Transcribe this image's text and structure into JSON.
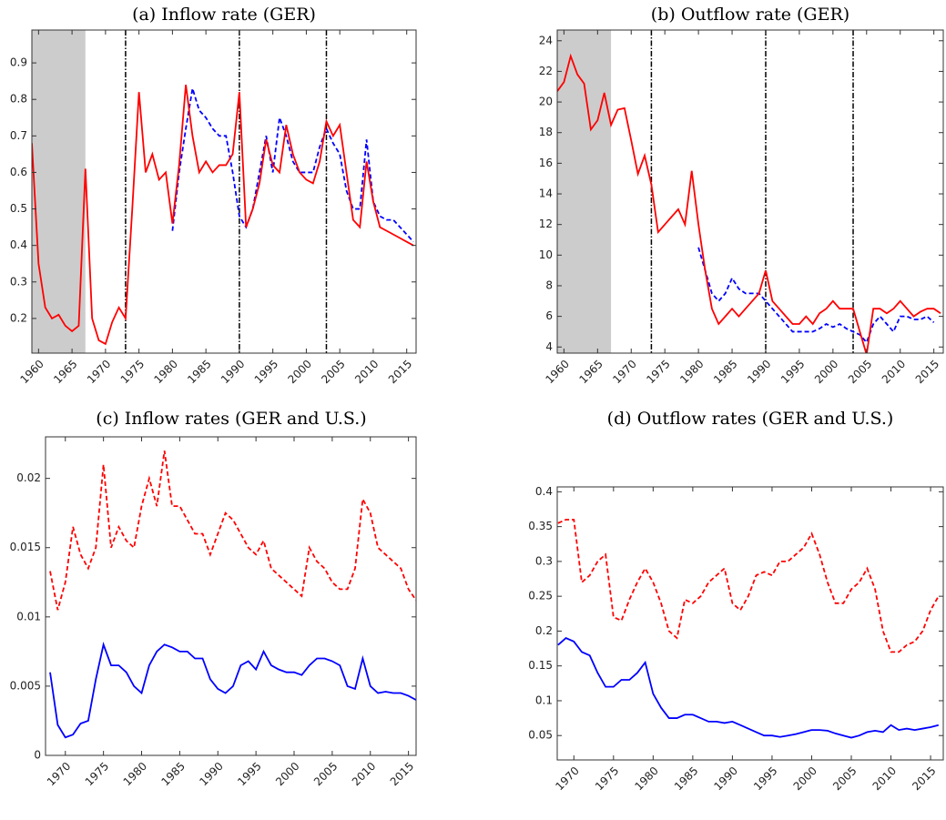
{
  "chart_data": [
    {
      "type": "line",
      "title": "(a)  Inflow rate (GER)",
      "x": [
        1959,
        1960,
        1961,
        1962,
        1963,
        1964,
        1965,
        1966,
        1967,
        1968,
        1969,
        1970,
        1971,
        1972,
        1973,
        1974,
        1975,
        1976,
        1977,
        1978,
        1979,
        1980,
        1981,
        1982,
        1983,
        1984,
        1985,
        1986,
        1987,
        1988,
        1989,
        1990,
        1991,
        1992,
        1993,
        1994,
        1995,
        1996,
        1997,
        1998,
        1999,
        2000,
        2001,
        2002,
        2003,
        2004,
        2005,
        2006,
        2007,
        2008,
        2009,
        2010,
        2011,
        2012,
        2013,
        2014,
        2015,
        2016
      ],
      "series": [
        {
          "color": "#0000ff",
          "style": "dashed",
          "values": [
            null,
            null,
            null,
            null,
            null,
            null,
            null,
            null,
            null,
            null,
            null,
            null,
            null,
            null,
            null,
            null,
            null,
            null,
            null,
            null,
            null,
            0.44,
            0.6,
            0.72,
            0.83,
            0.77,
            0.75,
            0.72,
            0.7,
            0.7,
            0.6,
            0.48,
            0.45,
            0.5,
            0.6,
            0.7,
            0.6,
            0.75,
            0.7,
            0.63,
            0.6,
            0.6,
            0.6,
            0.67,
            0.72,
            0.68,
            0.65,
            0.55,
            0.5,
            0.5,
            0.69,
            0.52,
            0.48,
            0.47,
            0.47,
            0.45,
            0.43,
            0.41
          ]
        },
        {
          "color": "#ff0000",
          "style": "solid",
          "values": [
            0.68,
            0.35,
            0.23,
            0.2,
            0.21,
            0.18,
            0.165,
            0.18,
            0.61,
            0.2,
            0.14,
            0.13,
            0.19,
            0.23,
            0.2,
            0.5,
            0.82,
            0.6,
            0.65,
            0.58,
            0.6,
            0.46,
            0.62,
            0.84,
            0.7,
            0.6,
            0.63,
            0.6,
            0.62,
            0.62,
            0.65,
            0.82,
            0.45,
            0.5,
            0.57,
            0.69,
            0.62,
            0.6,
            0.73,
            0.65,
            0.6,
            0.58,
            0.57,
            0.63,
            0.74,
            0.7,
            0.73,
            0.6,
            0.47,
            0.45,
            0.63,
            0.52,
            0.45,
            0.44,
            0.43,
            0.42,
            0.41,
            0.4
          ]
        }
      ],
      "xlim": [
        1959,
        2016.4
      ],
      "xticks": [
        1960,
        1965,
        1970,
        1975,
        1980,
        1985,
        1990,
        1995,
        2000,
        2005,
        2010,
        2015
      ],
      "ylim": [
        0.105,
        0.99
      ],
      "yticks": [
        0.2,
        0.3,
        0.4,
        0.5,
        0.6,
        0.7,
        0.8,
        0.9
      ],
      "shade": [
        1959,
        1967
      ],
      "shade_color": "#cccccc",
      "vlines": [
        1973,
        1990,
        2003
      ]
    },
    {
      "type": "line",
      "title": "(b)  Outflow rate (GER)",
      "x": [
        1959,
        1960,
        1961,
        1962,
        1963,
        1964,
        1965,
        1966,
        1967,
        1968,
        1969,
        1970,
        1971,
        1972,
        1973,
        1974,
        1975,
        1976,
        1977,
        1978,
        1979,
        1980,
        1981,
        1982,
        1983,
        1984,
        1985,
        1986,
        1987,
        1988,
        1989,
        1990,
        1991,
        1992,
        1993,
        1994,
        1995,
        1996,
        1997,
        1998,
        1999,
        2000,
        2001,
        2002,
        2003,
        2004,
        2005,
        2006,
        2007,
        2008,
        2009,
        2010,
        2011,
        2012,
        2013,
        2014,
        2015,
        2016
      ],
      "series": [
        {
          "color": "#0000ff",
          "style": "dashed",
          "values": [
            null,
            null,
            null,
            null,
            null,
            null,
            null,
            null,
            null,
            null,
            null,
            null,
            null,
            null,
            null,
            null,
            null,
            null,
            null,
            null,
            null,
            10.5,
            9,
            7.5,
            7,
            7.5,
            8.5,
            7.8,
            7.5,
            7.5,
            7.5,
            7,
            6.5,
            6,
            5.5,
            5,
            5,
            5,
            5,
            5.2,
            5.5,
            5.3,
            5.5,
            5.2,
            5,
            4.8,
            4.3,
            5.5,
            6,
            5.5,
            5,
            6,
            6,
            5.8,
            5.8,
            6,
            5.6,
            null
          ]
        },
        {
          "color": "#ff0000",
          "style": "solid",
          "values": [
            20.7,
            21.3,
            23,
            21.8,
            21.2,
            18.2,
            18.8,
            20.6,
            18.5,
            19.5,
            19.6,
            17.5,
            15.3,
            16.5,
            14.6,
            11.5,
            12,
            12.5,
            13,
            12,
            15.5,
            12,
            9,
            6.5,
            5.5,
            6,
            6.5,
            6,
            6.5,
            7,
            7.5,
            9,
            7,
            6.5,
            6,
            5.5,
            5.5,
            6,
            5.5,
            6.2,
            6.5,
            7,
            6.5,
            6.5,
            6.5,
            5,
            3.5,
            6.5,
            6.5,
            6.2,
            6.5,
            7,
            6.5,
            6,
            6.3,
            6.5,
            6.5,
            6.2
          ]
        }
      ],
      "xlim": [
        1959,
        2016.4
      ],
      "xticks": [
        1960,
        1965,
        1970,
        1975,
        1980,
        1985,
        1990,
        1995,
        2000,
        2005,
        2010,
        2015
      ],
      "ylim": [
        3.6,
        24.7
      ],
      "yticks": [
        4,
        6,
        8,
        10,
        12,
        14,
        16,
        18,
        20,
        22,
        24
      ],
      "shade": [
        1959,
        1967
      ],
      "shade_color": "#cccccc",
      "vlines": [
        1973,
        1990,
        2003
      ]
    },
    {
      "type": "line",
      "title": "(c)  Inflow rates (GER and U.S.)",
      "x": [
        1968,
        1969,
        1970,
        1971,
        1972,
        1973,
        1974,
        1975,
        1976,
        1977,
        1978,
        1979,
        1980,
        1981,
        1982,
        1983,
        1984,
        1985,
        1986,
        1987,
        1988,
        1989,
        1990,
        1991,
        1992,
        1993,
        1994,
        1995,
        1996,
        1997,
        1998,
        1999,
        2000,
        2001,
        2002,
        2003,
        2004,
        2005,
        2006,
        2007,
        2008,
        2009,
        2010,
        2011,
        2012,
        2013,
        2014,
        2015,
        2016
      ],
      "series": [
        {
          "color": "#ff0000",
          "style": "dashed",
          "values": [
            0.0133,
            0.0105,
            0.0125,
            0.0165,
            0.0145,
            0.0135,
            0.015,
            0.021,
            0.015,
            0.0165,
            0.0155,
            0.015,
            0.018,
            0.02,
            0.018,
            0.022,
            0.018,
            0.018,
            0.017,
            0.016,
            0.016,
            0.0145,
            0.016,
            0.0175,
            0.017,
            0.016,
            0.015,
            0.0145,
            0.0155,
            0.0135,
            0.013,
            0.0125,
            0.012,
            0.0115,
            0.015,
            0.014,
            0.0135,
            0.0125,
            0.012,
            0.012,
            0.0135,
            0.0185,
            0.0175,
            0.015,
            0.0145,
            0.014,
            0.0135,
            0.012,
            0.0112
          ]
        },
        {
          "color": "#0000ff",
          "style": "solid",
          "values": [
            0.006,
            0.0022,
            0.0013,
            0.0015,
            0.0023,
            0.0025,
            0.0055,
            0.008,
            0.0065,
            0.0065,
            0.006,
            0.005,
            0.0045,
            0.0065,
            0.0075,
            0.008,
            0.0078,
            0.0075,
            0.0075,
            0.007,
            0.007,
            0.0055,
            0.0048,
            0.0045,
            0.005,
            0.0065,
            0.0068,
            0.0062,
            0.0075,
            0.0065,
            0.0062,
            0.006,
            0.006,
            0.0058,
            0.0065,
            0.007,
            0.007,
            0.0068,
            0.0065,
            0.005,
            0.0048,
            0.007,
            0.005,
            0.0045,
            0.0046,
            0.0045,
            0.0045,
            0.0043,
            0.004
          ]
        }
      ],
      "xlim": [
        1967.4,
        2016
      ],
      "xticks": [
        1970,
        1975,
        1980,
        1985,
        1990,
        1995,
        2000,
        2005,
        2010,
        2015
      ],
      "ylim": [
        0,
        0.023
      ],
      "yticks": [
        0,
        0.005,
        0.01,
        0.015,
        0.02
      ]
    },
    {
      "type": "line",
      "title": "(d)  Outflow rates (GER and U.S.)",
      "x": [
        1968,
        1969,
        1970,
        1971,
        1972,
        1973,
        1974,
        1975,
        1976,
        1977,
        1978,
        1979,
        1980,
        1981,
        1982,
        1983,
        1984,
        1985,
        1986,
        1987,
        1988,
        1989,
        1990,
        1991,
        1992,
        1993,
        1994,
        1995,
        1996,
        1997,
        1998,
        1999,
        2000,
        2001,
        2002,
        2003,
        2004,
        2005,
        2006,
        2007,
        2008,
        2009,
        2010,
        2011,
        2012,
        2013,
        2014,
        2015,
        2016
      ],
      "series": [
        {
          "color": "#ff0000",
          "style": "dashed",
          "values": [
            0.355,
            0.36,
            0.36,
            0.27,
            0.28,
            0.3,
            0.31,
            0.22,
            0.215,
            0.245,
            0.27,
            0.29,
            0.27,
            0.24,
            0.2,
            0.19,
            0.245,
            0.24,
            0.25,
            0.27,
            0.28,
            0.29,
            0.24,
            0.23,
            0.25,
            0.28,
            0.285,
            0.28,
            0.3,
            0.3,
            0.31,
            0.32,
            0.34,
            0.31,
            0.27,
            0.24,
            0.24,
            0.26,
            0.27,
            0.29,
            0.26,
            0.2,
            0.17,
            0.17,
            0.18,
            0.185,
            0.2,
            0.23,
            0.25
          ]
        },
        {
          "color": "#0000ff",
          "style": "solid",
          "values": [
            0.18,
            0.19,
            0.185,
            0.17,
            0.165,
            0.14,
            0.12,
            0.12,
            0.13,
            0.13,
            0.14,
            0.155,
            0.11,
            0.09,
            0.075,
            0.075,
            0.08,
            0.08,
            0.075,
            0.07,
            0.07,
            0.068,
            0.07,
            0.065,
            0.06,
            0.055,
            0.05,
            0.05,
            0.048,
            0.05,
            0.052,
            0.055,
            0.058,
            0.058,
            0.057,
            0.053,
            0.05,
            0.047,
            0.05,
            0.055,
            0.057,
            0.055,
            0.065,
            0.058,
            0.06,
            0.058,
            0.06,
            0.062,
            0.065
          ]
        }
      ],
      "xlim": [
        1967.9,
        2016.6
      ],
      "xticks": [
        1970,
        1975,
        1980,
        1985,
        1990,
        1995,
        2000,
        2005,
        2010,
        2015
      ],
      "ylim": [
        0.015,
        0.407
      ],
      "yticks": [
        0.05,
        0.1,
        0.15,
        0.2,
        0.25,
        0.3,
        0.35,
        0.4
      ]
    }
  ]
}
